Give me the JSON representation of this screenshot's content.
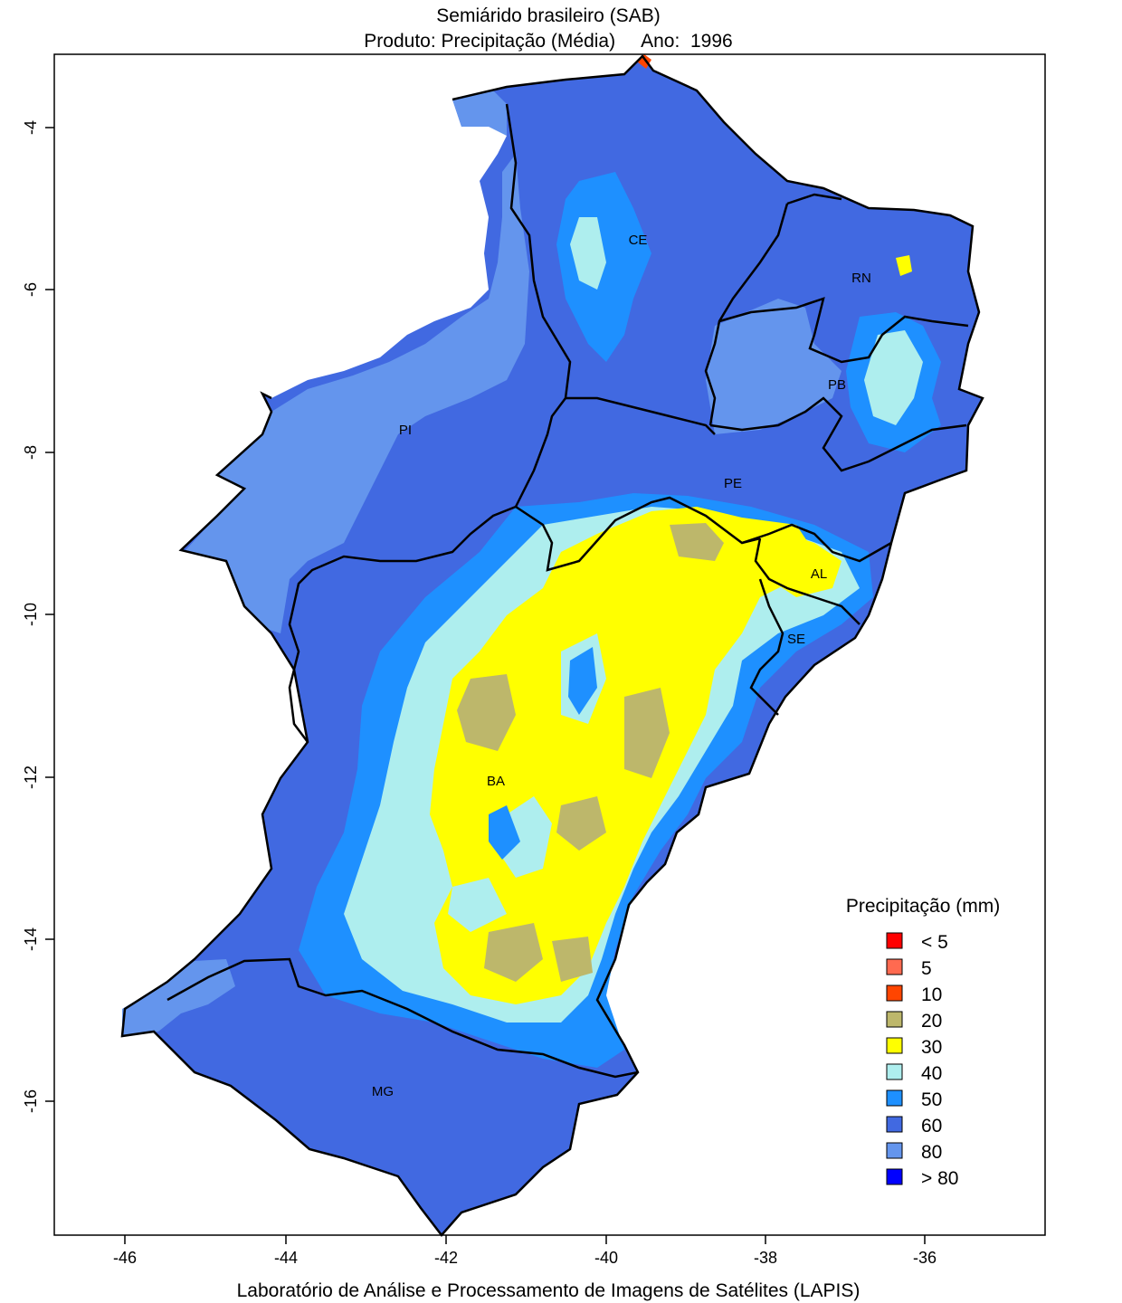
{
  "title": {
    "line1": "Semiárido brasileiro (SAB)",
    "line2": "Produto: Precipitação (Média)     Ano:  1996"
  },
  "footer": "Laboratório de Análise e Processamento de Imagens de Satélites (LAPIS)",
  "axes": {
    "x_ticks": [
      "-46",
      "-44",
      "-42",
      "-40",
      "-38",
      "-36"
    ],
    "y_ticks": [
      "-4",
      "-6",
      "-8",
      "-10",
      "-12",
      "-14",
      "-16"
    ]
  },
  "states": [
    {
      "code": "CE"
    },
    {
      "code": "RN"
    },
    {
      "code": "PB"
    },
    {
      "code": "PI"
    },
    {
      "code": "PE"
    },
    {
      "code": "AL"
    },
    {
      "code": "SE"
    },
    {
      "code": "BA"
    },
    {
      "code": "MG"
    }
  ],
  "legend": {
    "title": "Precipitação (mm)",
    "items": [
      {
        "label": "< 5",
        "color": "#ff0000"
      },
      {
        "label": "5",
        "color": "#ff6a50"
      },
      {
        "label": "10",
        "color": "#ff4500"
      },
      {
        "label": "20",
        "color": "#bdb76b"
      },
      {
        "label": "30",
        "color": "#ffff00"
      },
      {
        "label": "40",
        "color": "#aeeeee"
      },
      {
        "label": "50",
        "color": "#1e90ff"
      },
      {
        "label": "60",
        "color": "#4169e1"
      },
      {
        "label": "80",
        "color": "#6495ed"
      },
      {
        "label": "> 80",
        "color": "#0000ff"
      }
    ]
  },
  "colors": {
    "frame": "#000000",
    "border": "#000000",
    "background": "#ffffff"
  }
}
